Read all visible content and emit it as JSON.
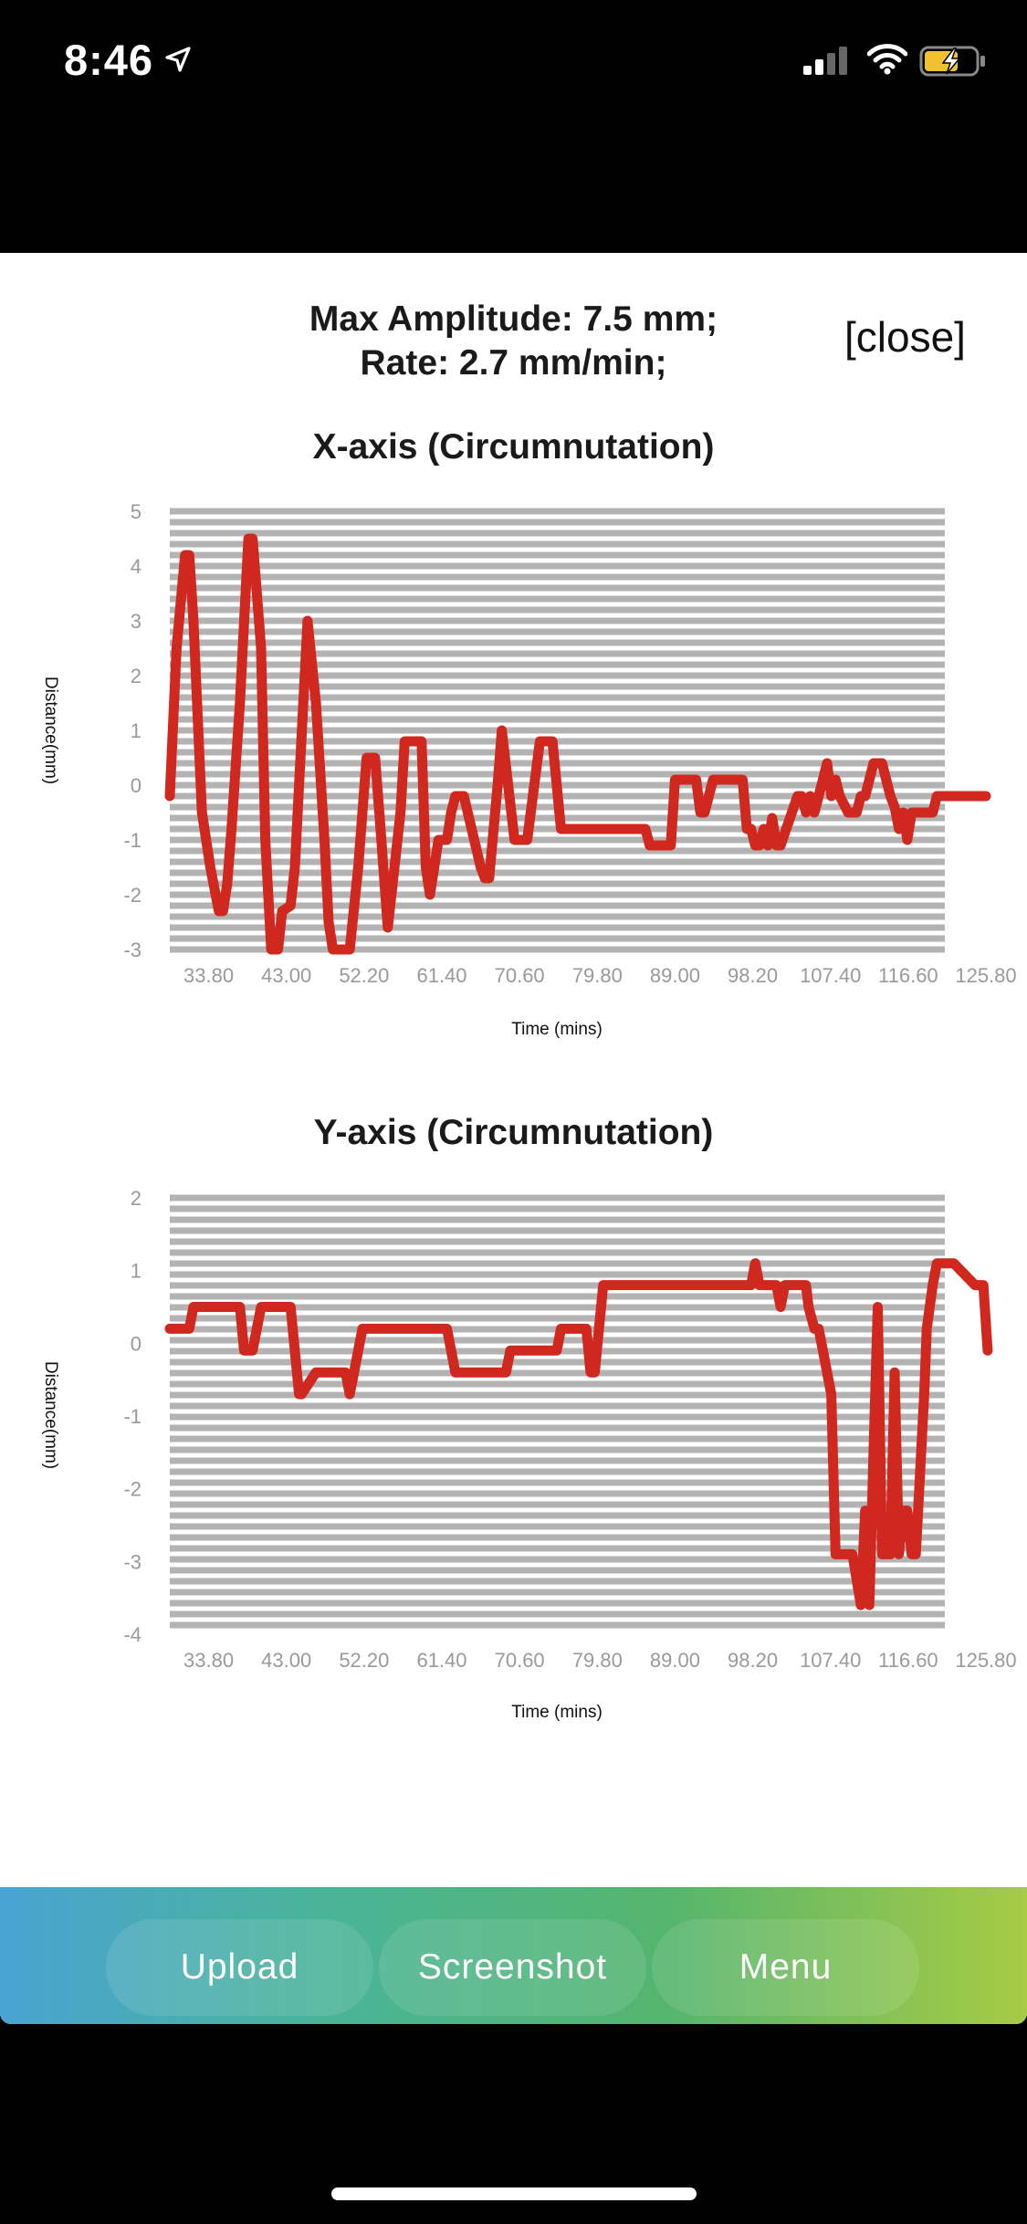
{
  "status_bar": {
    "time": "8:46"
  },
  "summary": {
    "amplitude_text": "Max Amplitude: 7.5 mm;",
    "rate_text": "Rate: 2.7 mm/min;"
  },
  "close_label": "[close]",
  "toolbar": {
    "upload_label": "Upload",
    "screenshot_label": "Screenshot",
    "menu_label": "Menu"
  },
  "colors": {
    "series": "#d0271f",
    "gridband": "#b3b3b3",
    "toolbar_start": "#4aa3d3",
    "toolbar_end": "#a7cb45"
  },
  "chart_data": [
    {
      "type": "line",
      "title": "X-axis (Circumnutation)",
      "xlabel": "Time (mins)",
      "ylabel": "Distance(mm)",
      "ylim": [
        -3,
        5
      ],
      "xlim": [
        29.2,
        125.8
      ],
      "y_ticks": [
        "5",
        "4",
        "3",
        "2",
        "1",
        "0",
        "-1",
        "-2",
        "-3"
      ],
      "x_ticks": [
        "33.80",
        "43.00",
        "52.20",
        "61.40",
        "70.60",
        "79.80",
        "89.00",
        "98.20",
        "107.40",
        "116.60",
        "125.80"
      ],
      "series": [
        {
          "name": "X",
          "x": [
            29.2,
            30.0,
            31.0,
            31.5,
            32.0,
            33.0,
            34.0,
            35.0,
            35.5,
            36.0,
            36.5,
            37.5,
            38.5,
            39.0,
            40.0,
            40.5,
            41.2,
            42.0,
            42.5,
            43.5,
            44.0,
            44.5,
            45.5,
            46.5,
            47.5,
            48.0,
            48.5,
            49.5,
            50.5,
            51.5,
            52.5,
            53.5,
            54.0,
            55.0,
            56.5,
            57.0,
            59.0,
            59.5,
            60.0,
            61.0,
            62.0,
            62.5,
            63.0,
            63.5,
            64.0,
            66.0,
            66.5,
            67.0,
            68.0,
            68.5,
            70.0,
            71.0,
            71.5,
            73.0,
            74.0,
            74.5,
            75.5,
            77.0,
            78.0,
            79.5,
            85.5,
            86.0,
            88.5,
            89.0,
            91.5,
            92.0,
            92.5,
            93.5,
            94.5,
            97.0,
            97.5,
            98.0,
            98.5,
            99.0,
            99.5,
            100.0,
            100.5,
            101.0,
            101.5,
            103.5,
            104.0,
            104.5,
            105.0,
            105.5,
            106.0,
            107.0,
            107.5,
            108.0,
            108.5,
            109.5,
            110.5,
            111.0,
            111.5,
            112.0,
            112.5,
            113.0,
            113.5,
            114.5,
            115.0,
            115.5,
            116.0,
            116.5,
            117.0,
            117.5,
            118.0,
            119.5,
            120.0,
            125.8
          ],
          "y": [
            -0.2,
            2.5,
            4.2,
            4.2,
            3.0,
            -0.5,
            -1.5,
            -2.3,
            -2.3,
            -1.8,
            -0.8,
            1.5,
            4.5,
            4.5,
            2.5,
            -1.0,
            -3.0,
            -3.0,
            -2.3,
            -2.2,
            -1.5,
            0.0,
            3.0,
            1.5,
            -1.0,
            -2.5,
            -3.0,
            -3.0,
            -3.0,
            -1.5,
            0.5,
            0.5,
            -0.5,
            -2.6,
            -0.5,
            0.8,
            0.8,
            -1.5,
            -2.0,
            -1.0,
            -1.0,
            -0.5,
            -0.2,
            -0.2,
            -0.2,
            -1.5,
            -1.7,
            -1.7,
            0.0,
            1.0,
            -1.0,
            -1.0,
            -1.0,
            0.8,
            0.8,
            0.8,
            -0.8,
            -0.8,
            -0.8,
            -0.8,
            -0.8,
            -1.1,
            -1.1,
            0.1,
            0.1,
            -0.5,
            -0.5,
            0.1,
            0.1,
            0.1,
            -0.8,
            -0.8,
            -1.1,
            -1.1,
            -0.8,
            -1.1,
            -0.6,
            -1.1,
            -1.1,
            -0.2,
            -0.2,
            -0.5,
            -0.2,
            -0.5,
            -0.2,
            0.4,
            -0.2,
            0.1,
            -0.2,
            -0.5,
            -0.5,
            -0.2,
            -0.2,
            0.1,
            0.4,
            0.4,
            0.4,
            -0.2,
            -0.4,
            -0.8,
            -0.5,
            -1.0,
            -0.5,
            -0.5,
            -0.5,
            -0.5,
            -0.2,
            -0.2
          ]
        }
      ]
    },
    {
      "type": "line",
      "title": "Y-axis (Circumnutation)",
      "xlabel": "Time (mins)",
      "ylabel": "Distance(mm)",
      "ylim": [
        -4,
        2
      ],
      "xlim": [
        29.2,
        125.8
      ],
      "y_ticks": [
        "2",
        "1",
        "0",
        "-1",
        "-2",
        "-3",
        "-4"
      ],
      "x_ticks": [
        "33.80",
        "43.00",
        "52.20",
        "61.40",
        "70.60",
        "79.80",
        "89.00",
        "98.20",
        "107.40",
        "116.60",
        "125.80"
      ],
      "series": [
        {
          "name": "Y",
          "x": [
            29.2,
            31.5,
            32.0,
            37.5,
            38.0,
            39.0,
            39.5,
            40.0,
            42.0,
            43.5,
            44.5,
            44.8,
            46.5,
            49.5,
            50.0,
            50.5,
            51.0,
            52.0,
            55.0,
            62.0,
            62.5,
            63.0,
            65.0,
            69.0,
            69.5,
            75.0,
            75.5,
            78.5,
            79.0,
            79.5,
            80.0,
            80.5,
            81.0,
            98.0,
            98.5,
            99.0,
            100.0,
            101.0,
            101.5,
            102.0,
            104.5,
            104.8,
            105.5,
            106.0,
            107.5,
            108.0,
            108.5,
            110.0,
            111.0,
            111.5,
            112.0,
            112.5,
            113.0,
            113.5,
            114.0,
            114.5,
            115.0,
            115.5,
            116.0,
            116.5,
            117.0,
            117.5,
            118.5,
            118.8,
            119.5,
            120.0,
            121.0,
            122.0,
            124.5,
            125.5,
            126.0
          ],
          "y": [
            0.2,
            0.2,
            0.5,
            0.5,
            -0.1,
            -0.1,
            0.2,
            0.5,
            0.5,
            0.5,
            -0.7,
            -0.7,
            -0.4,
            -0.4,
            -0.4,
            -0.7,
            -0.4,
            0.2,
            0.2,
            0.2,
            -0.1,
            -0.4,
            -0.4,
            -0.4,
            -0.1,
            -0.1,
            0.2,
            0.2,
            -0.4,
            -0.4,
            0.2,
            0.8,
            0.8,
            0.8,
            1.1,
            0.8,
            0.8,
            0.8,
            0.5,
            0.8,
            0.8,
            0.5,
            0.2,
            0.2,
            -0.7,
            -2.9,
            -2.9,
            -2.9,
            -3.6,
            -2.3,
            -3.6,
            -1.5,
            0.5,
            -2.9,
            -2.9,
            -2.9,
            -0.4,
            -2.9,
            -2.3,
            -2.3,
            -2.9,
            -2.9,
            -0.7,
            0.2,
            0.8,
            1.1,
            1.1,
            1.1,
            0.8,
            0.8,
            -0.1
          ]
        }
      ]
    }
  ]
}
